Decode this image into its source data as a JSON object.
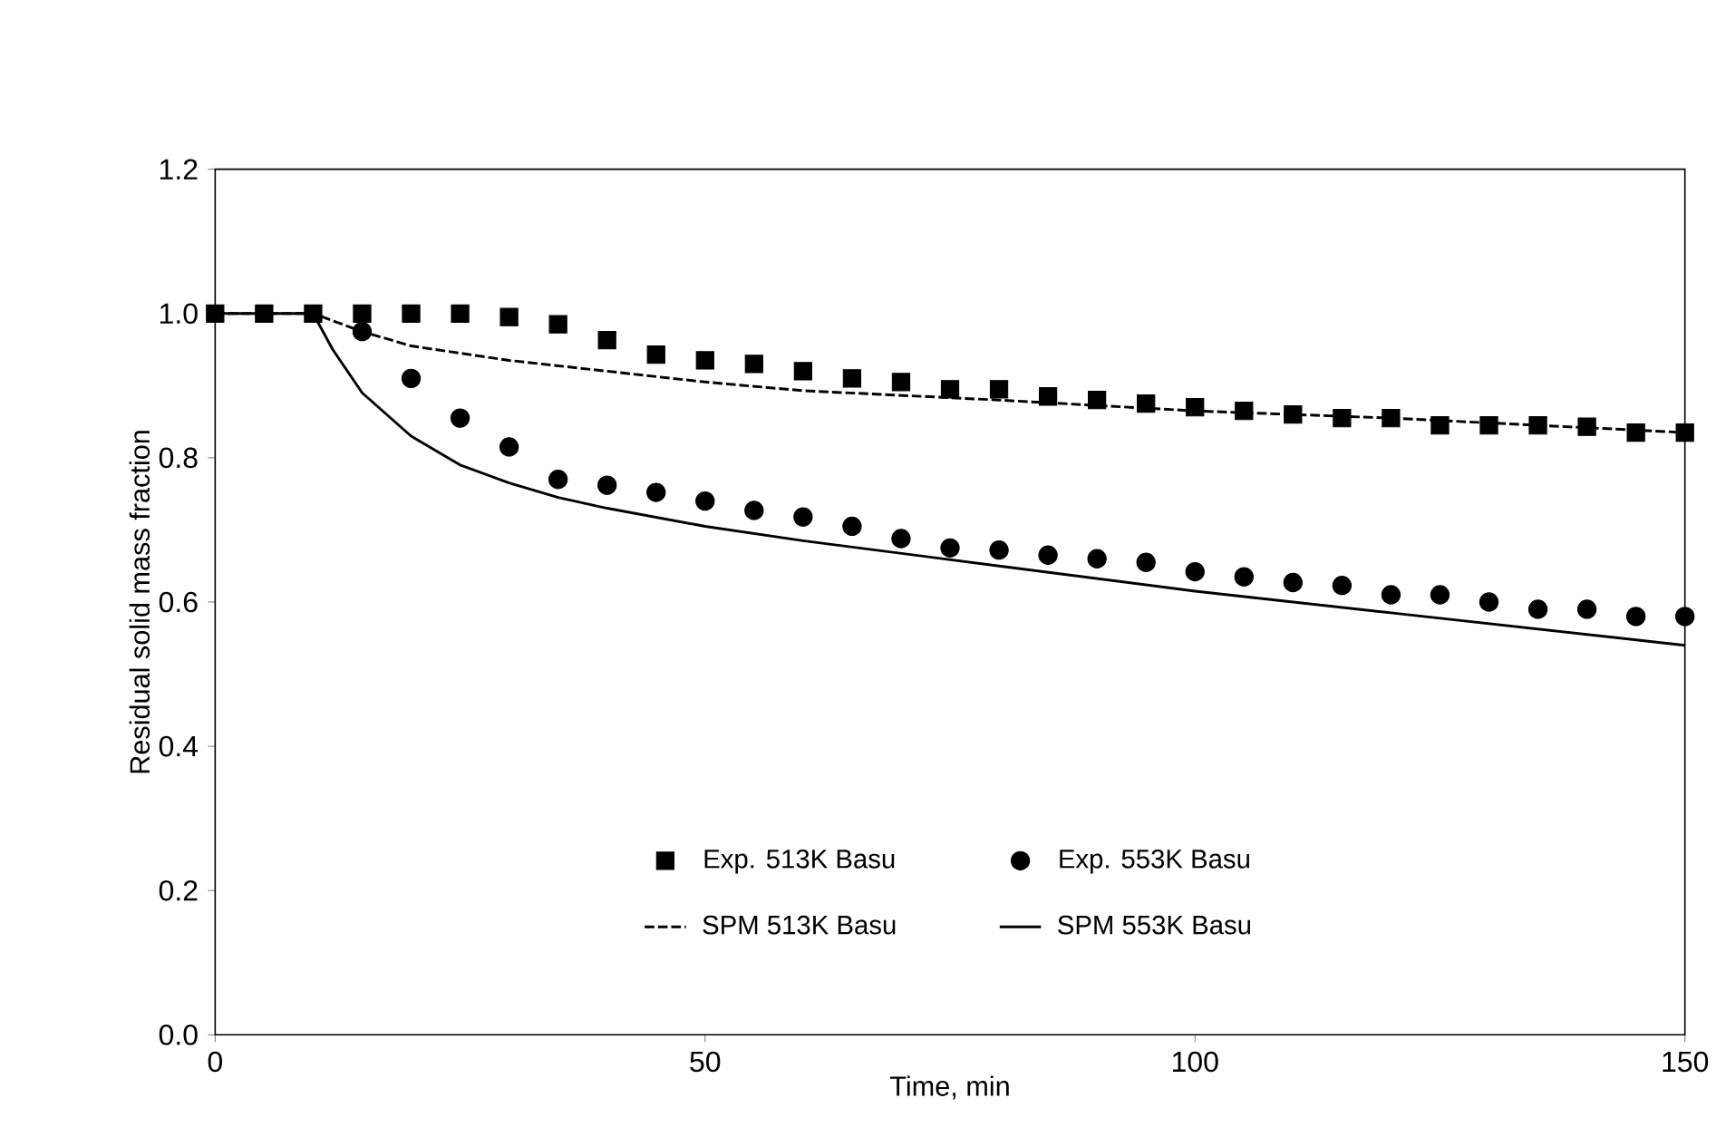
{
  "chart_data": {
    "type": "scatter",
    "xlabel": "Time, min",
    "ylabel": "Residual solid mass fraction",
    "xlim": [
      0,
      150
    ],
    "xticks": [
      0,
      50,
      100,
      150
    ],
    "ylim": [
      0,
      1.2
    ],
    "yticks": [
      {
        "value": 0,
        "label": "0.0"
      },
      {
        "value": 0.2,
        "label": "0.2"
      },
      {
        "value": 0.4,
        "label": "0.4"
      },
      {
        "value": 0.6,
        "label": "0.6"
      },
      {
        "value": 0.8,
        "label": "0.8"
      },
      {
        "value": 1.0,
        "label": "1.0"
      },
      {
        "value": 1.2,
        "label": "1.2"
      }
    ],
    "grid": false,
    "legend": "bottom",
    "series": [
      {
        "name": "Exp. 513K Basu",
        "marker": "square",
        "color": "#000000",
        "x": [
          0,
          5,
          10,
          15,
          20,
          25,
          30,
          35,
          40,
          45,
          50,
          55,
          60,
          65,
          70,
          75,
          80,
          85,
          90,
          95,
          100,
          105,
          110,
          115,
          120,
          125,
          130,
          135,
          140,
          145,
          150
        ],
        "values": [
          1.0,
          1.0,
          1.0,
          1.0,
          1.0,
          1.0,
          0.995,
          0.985,
          0.963,
          0.943,
          0.935,
          0.93,
          0.92,
          0.91,
          0.905,
          0.895,
          0.895,
          0.885,
          0.88,
          0.875,
          0.87,
          0.865,
          0.86,
          0.855,
          0.855,
          0.845,
          0.845,
          0.845,
          0.843,
          0.835,
          0.835
        ]
      },
      {
        "name": "Exp. 553K Basu",
        "marker": "circle",
        "color": "#000000",
        "x": [
          15,
          20,
          25,
          30,
          35,
          40,
          45,
          50,
          55,
          60,
          65,
          70,
          75,
          80,
          85,
          90,
          95,
          100,
          105,
          110,
          115,
          120,
          125,
          130,
          135,
          140,
          145,
          150
        ],
        "values": [
          0.975,
          0.91,
          0.855,
          0.815,
          0.77,
          0.762,
          0.752,
          0.74,
          0.727,
          0.718,
          0.705,
          0.688,
          0.675,
          0.672,
          0.665,
          0.66,
          0.655,
          0.642,
          0.635,
          0.627,
          0.623,
          0.61,
          0.61,
          0.6,
          0.59,
          0.59,
          0.58,
          0.58
        ]
      },
      {
        "name": "SPM 513K Basu",
        "type": "line",
        "line_style": "dashed",
        "color": "#000000",
        "x": [
          0,
          10,
          15,
          20,
          30,
          40,
          50,
          60,
          80,
          100,
          120,
          150
        ],
        "values": [
          1.0,
          1.0,
          0.975,
          0.955,
          0.935,
          0.92,
          0.905,
          0.893,
          0.88,
          0.865,
          0.855,
          0.835
        ]
      },
      {
        "name": "SPM 553K Basu",
        "type": "line",
        "line_style": "solid",
        "color": "#000000",
        "x": [
          0,
          10,
          12,
          15,
          20,
          25,
          30,
          35,
          40,
          50,
          60,
          80,
          100,
          120,
          150
        ],
        "values": [
          1.0,
          1.0,
          0.95,
          0.89,
          0.83,
          0.79,
          0.765,
          0.745,
          0.73,
          0.705,
          0.685,
          0.65,
          0.615,
          0.585,
          0.54
        ]
      }
    ]
  }
}
